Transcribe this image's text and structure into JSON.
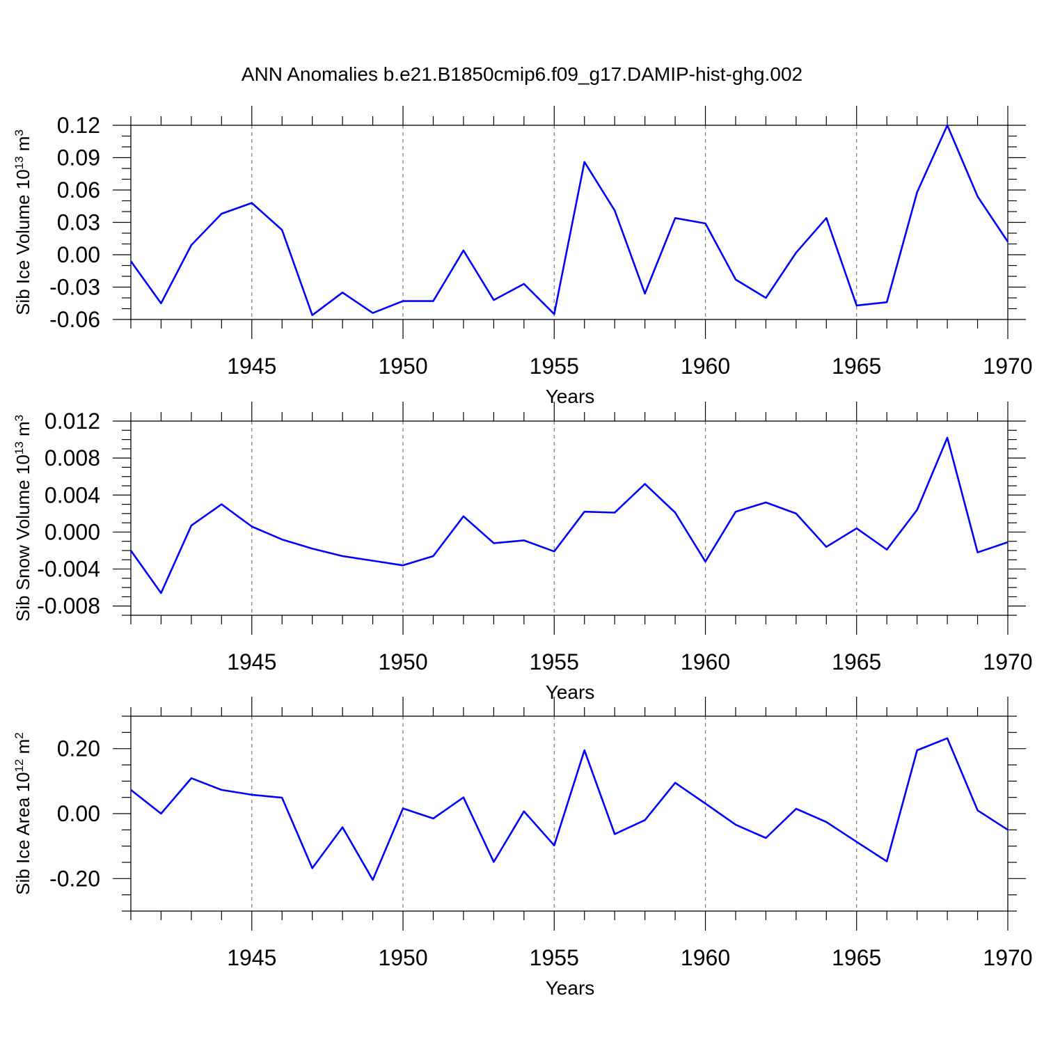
{
  "chart_data": {
    "title": "ANN Anomalies b.e21.B1850cmip6.f09_g17.DAMIP-hist-ghg.002",
    "colors": {
      "line": "#0000ff",
      "axis": "#000000",
      "grid": "#777777"
    },
    "panels": [
      {
        "type": "line",
        "xlabel": "Years",
        "ylabel": {
          "text": "Sib Ice Volume 10",
          "exp": "13",
          "unit": " m",
          "unit_exp": "3"
        },
        "x": [
          1941,
          1942,
          1943,
          1944,
          1945,
          1946,
          1947,
          1948,
          1949,
          1950,
          1951,
          1952,
          1953,
          1954,
          1955,
          1956,
          1957,
          1958,
          1959,
          1960,
          1961,
          1962,
          1963,
          1964,
          1965,
          1966,
          1967,
          1968,
          1969,
          1970
        ],
        "values": [
          -0.006,
          -0.045,
          0.009,
          0.038,
          0.048,
          0.023,
          -0.056,
          -0.035,
          -0.054,
          -0.043,
          -0.043,
          0.004,
          -0.042,
          -0.027,
          -0.055,
          0.086,
          0.041,
          -0.036,
          0.034,
          0.029,
          -0.023,
          -0.04,
          0.002,
          0.034,
          -0.047,
          -0.044,
          0.058,
          0.12,
          0.054,
          0.012
        ],
        "xlim": [
          1941,
          1970
        ],
        "ylim": [
          -0.06,
          0.12
        ],
        "xticks": [
          1945,
          1950,
          1955,
          1960,
          1965,
          1970
        ],
        "xtick_labels": [
          "1945",
          "1950",
          "1955",
          "1960",
          "1965",
          "1970"
        ],
        "yticks": [
          -0.06,
          -0.03,
          0.0,
          0.03,
          0.06,
          0.09,
          0.12
        ],
        "ytick_labels": [
          "-0.06",
          "-0.03",
          "0.00",
          "0.03",
          "0.06",
          "0.09",
          "0.12"
        ],
        "yminor_step": 0.01,
        "grid": "x-dashed"
      },
      {
        "type": "line",
        "xlabel": "Years",
        "ylabel": {
          "text": "Sib Snow Volume 10",
          "exp": "13",
          "unit": " m",
          "unit_exp": "3"
        },
        "x": [
          1941,
          1942,
          1943,
          1944,
          1945,
          1946,
          1947,
          1948,
          1949,
          1950,
          1951,
          1952,
          1953,
          1954,
          1955,
          1956,
          1957,
          1958,
          1959,
          1960,
          1961,
          1962,
          1963,
          1964,
          1965,
          1966,
          1967,
          1968,
          1969,
          1970
        ],
        "values": [
          -0.002,
          -0.0066,
          0.0007,
          0.003,
          0.0006,
          -0.0008,
          -0.0018,
          -0.0026,
          -0.0031,
          -0.0036,
          -0.0026,
          0.0017,
          -0.0012,
          -0.0009,
          -0.0021,
          0.0022,
          0.0021,
          0.0052,
          0.0021,
          -0.0032,
          0.0022,
          0.0032,
          0.002,
          -0.0016,
          0.0004,
          -0.0019,
          0.0024,
          0.0102,
          -0.0022,
          -0.0011
        ],
        "xlim": [
          1941,
          1970
        ],
        "ylim": [
          -0.009,
          0.012
        ],
        "xticks": [
          1945,
          1950,
          1955,
          1960,
          1965,
          1970
        ],
        "xtick_labels": [
          "1945",
          "1950",
          "1955",
          "1960",
          "1965",
          "1970"
        ],
        "yticks": [
          -0.008,
          -0.004,
          0.0,
          0.004,
          0.008,
          0.012
        ],
        "ytick_labels": [
          "-0.008",
          "-0.004",
          "0.000",
          "0.004",
          "0.008",
          "0.012"
        ],
        "yminor_step": 0.001,
        "grid": "x-dashed"
      },
      {
        "type": "line",
        "xlabel": "Years",
        "ylabel": {
          "text": "Sib Ice Area 10",
          "exp": "12",
          "unit": " m",
          "unit_exp": "2"
        },
        "x": [
          1941,
          1942,
          1943,
          1944,
          1945,
          1946,
          1947,
          1948,
          1949,
          1950,
          1951,
          1952,
          1953,
          1954,
          1955,
          1956,
          1957,
          1958,
          1959,
          1960,
          1961,
          1962,
          1963,
          1964,
          1965,
          1966,
          1967,
          1968,
          1969,
          1970
        ],
        "values": [
          0.073,
          0.0,
          0.109,
          0.073,
          0.058,
          0.049,
          -0.168,
          -0.042,
          -0.204,
          0.016,
          -0.015,
          0.05,
          -0.149,
          0.007,
          -0.098,
          0.195,
          -0.063,
          -0.02,
          0.095,
          0.031,
          -0.034,
          -0.075,
          0.015,
          -0.026,
          -0.087,
          -0.147,
          0.195,
          0.232,
          0.01,
          -0.05
        ],
        "xlim": [
          1941,
          1970
        ],
        "ylim": [
          -0.3,
          0.3
        ],
        "xticks": [
          1945,
          1950,
          1955,
          1960,
          1965,
          1970
        ],
        "xtick_labels": [
          "1945",
          "1950",
          "1955",
          "1960",
          "1965",
          "1970"
        ],
        "yticks": [
          -0.2,
          0.0,
          0.2
        ],
        "ytick_labels": [
          "-0.20",
          "0.00",
          "0.20"
        ],
        "yminor_step": 0.05,
        "grid": "x-dashed"
      }
    ]
  }
}
